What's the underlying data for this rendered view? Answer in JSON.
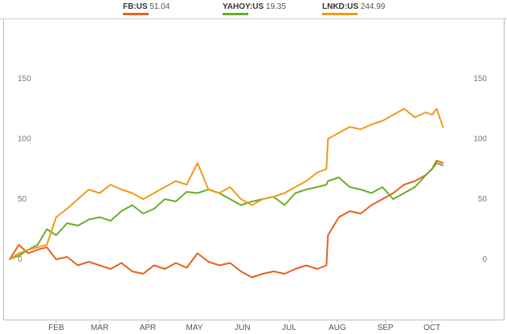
{
  "legend": [
    {
      "symbol": "FB:US",
      "value": "51.04",
      "color": "#e8601c"
    },
    {
      "symbol": "YAHOY:US",
      "value": "19.35",
      "color": "#6aac2c"
    },
    {
      "symbol": "LNKD:US",
      "value": "244.99",
      "color": "#f19a1a"
    }
  ],
  "chart_data": {
    "type": "line",
    "y_ticks": [
      "150",
      "100",
      "50",
      "0"
    ],
    "x_ticks": [
      "FEB",
      "MAR",
      "APR",
      "MAY",
      "JUN",
      "JUL",
      "AUG",
      "SEP",
      "OCT"
    ],
    "ylim": [
      -50,
      200
    ],
    "grid": false,
    "legend_position": "top",
    "series": [
      {
        "name": "FB:US",
        "color": "#e8601c",
        "x": [
          "2013-01-02",
          "2013-01-08",
          "2013-01-14",
          "2013-01-20",
          "2013-01-26",
          "2013-02-01",
          "2013-02-08",
          "2013-02-15",
          "2013-02-22",
          "2013-03-01",
          "2013-03-08",
          "2013-03-15",
          "2013-03-22",
          "2013-03-29",
          "2013-04-05",
          "2013-04-12",
          "2013-04-19",
          "2013-04-26",
          "2013-05-03",
          "2013-05-10",
          "2013-05-17",
          "2013-05-24",
          "2013-05-31",
          "2013-06-07",
          "2013-06-14",
          "2013-06-21",
          "2013-06-28",
          "2013-07-05",
          "2013-07-12",
          "2013-07-19",
          "2013-07-25",
          "2013-07-26",
          "2013-08-02",
          "2013-08-09",
          "2013-08-16",
          "2013-08-23",
          "2013-08-30",
          "2013-09-06",
          "2013-09-13",
          "2013-09-20",
          "2013-09-27",
          "2013-10-01",
          "2013-10-04",
          "2013-10-08"
        ],
        "values": [
          0,
          12,
          5,
          8,
          10,
          0,
          2,
          -5,
          -2,
          -5,
          -8,
          -3,
          -10,
          -12,
          -5,
          -8,
          -3,
          -7,
          5,
          -2,
          -5,
          -3,
          -10,
          -15,
          -12,
          -10,
          -12,
          -8,
          -5,
          -8,
          -5,
          20,
          35,
          40,
          38,
          45,
          50,
          55,
          62,
          65,
          70,
          75,
          82,
          80
        ]
      },
      {
        "name": "YAHOY:US",
        "color": "#6aac2c",
        "x": [
          "2013-01-02",
          "2013-01-08",
          "2013-01-14",
          "2013-01-20",
          "2013-01-26",
          "2013-02-01",
          "2013-02-08",
          "2013-02-15",
          "2013-02-22",
          "2013-03-01",
          "2013-03-08",
          "2013-03-15",
          "2013-03-22",
          "2013-03-29",
          "2013-04-05",
          "2013-04-12",
          "2013-04-19",
          "2013-04-26",
          "2013-05-03",
          "2013-05-10",
          "2013-05-17",
          "2013-05-24",
          "2013-05-31",
          "2013-06-07",
          "2013-06-14",
          "2013-06-21",
          "2013-06-28",
          "2013-07-05",
          "2013-07-12",
          "2013-07-19",
          "2013-07-25",
          "2013-07-26",
          "2013-08-02",
          "2013-08-09",
          "2013-08-16",
          "2013-08-23",
          "2013-08-30",
          "2013-09-06",
          "2013-09-13",
          "2013-09-20",
          "2013-09-27",
          "2013-10-01",
          "2013-10-04",
          "2013-10-08"
        ],
        "values": [
          0,
          3,
          8,
          12,
          25,
          20,
          30,
          28,
          33,
          35,
          32,
          40,
          45,
          38,
          42,
          50,
          48,
          56,
          55,
          58,
          55,
          50,
          45,
          48,
          50,
          52,
          45,
          55,
          58,
          60,
          62,
          65,
          68,
          60,
          58,
          55,
          60,
          50,
          55,
          60,
          70,
          75,
          80,
          78
        ]
      },
      {
        "name": "LNKD:US",
        "color": "#f19a1a",
        "x": [
          "2013-01-02",
          "2013-01-08",
          "2013-01-14",
          "2013-01-20",
          "2013-01-26",
          "2013-02-01",
          "2013-02-08",
          "2013-02-15",
          "2013-02-22",
          "2013-03-01",
          "2013-03-08",
          "2013-03-15",
          "2013-03-22",
          "2013-03-29",
          "2013-04-05",
          "2013-04-12",
          "2013-04-19",
          "2013-04-26",
          "2013-05-03",
          "2013-05-10",
          "2013-05-17",
          "2013-05-24",
          "2013-05-31",
          "2013-06-07",
          "2013-06-14",
          "2013-06-21",
          "2013-06-28",
          "2013-07-05",
          "2013-07-12",
          "2013-07-19",
          "2013-07-25",
          "2013-07-26",
          "2013-08-02",
          "2013-08-09",
          "2013-08-16",
          "2013-08-23",
          "2013-08-30",
          "2013-09-06",
          "2013-09-13",
          "2013-09-20",
          "2013-09-27",
          "2013-10-01",
          "2013-10-04",
          "2013-10-08"
        ],
        "values": [
          0,
          5,
          8,
          10,
          12,
          35,
          42,
          50,
          58,
          55,
          62,
          58,
          55,
          50,
          55,
          60,
          65,
          62,
          80,
          58,
          55,
          60,
          50,
          45,
          50,
          52,
          55,
          60,
          65,
          72,
          75,
          100,
          105,
          110,
          108,
          112,
          115,
          120,
          125,
          118,
          122,
          120,
          125,
          110
        ]
      }
    ]
  }
}
